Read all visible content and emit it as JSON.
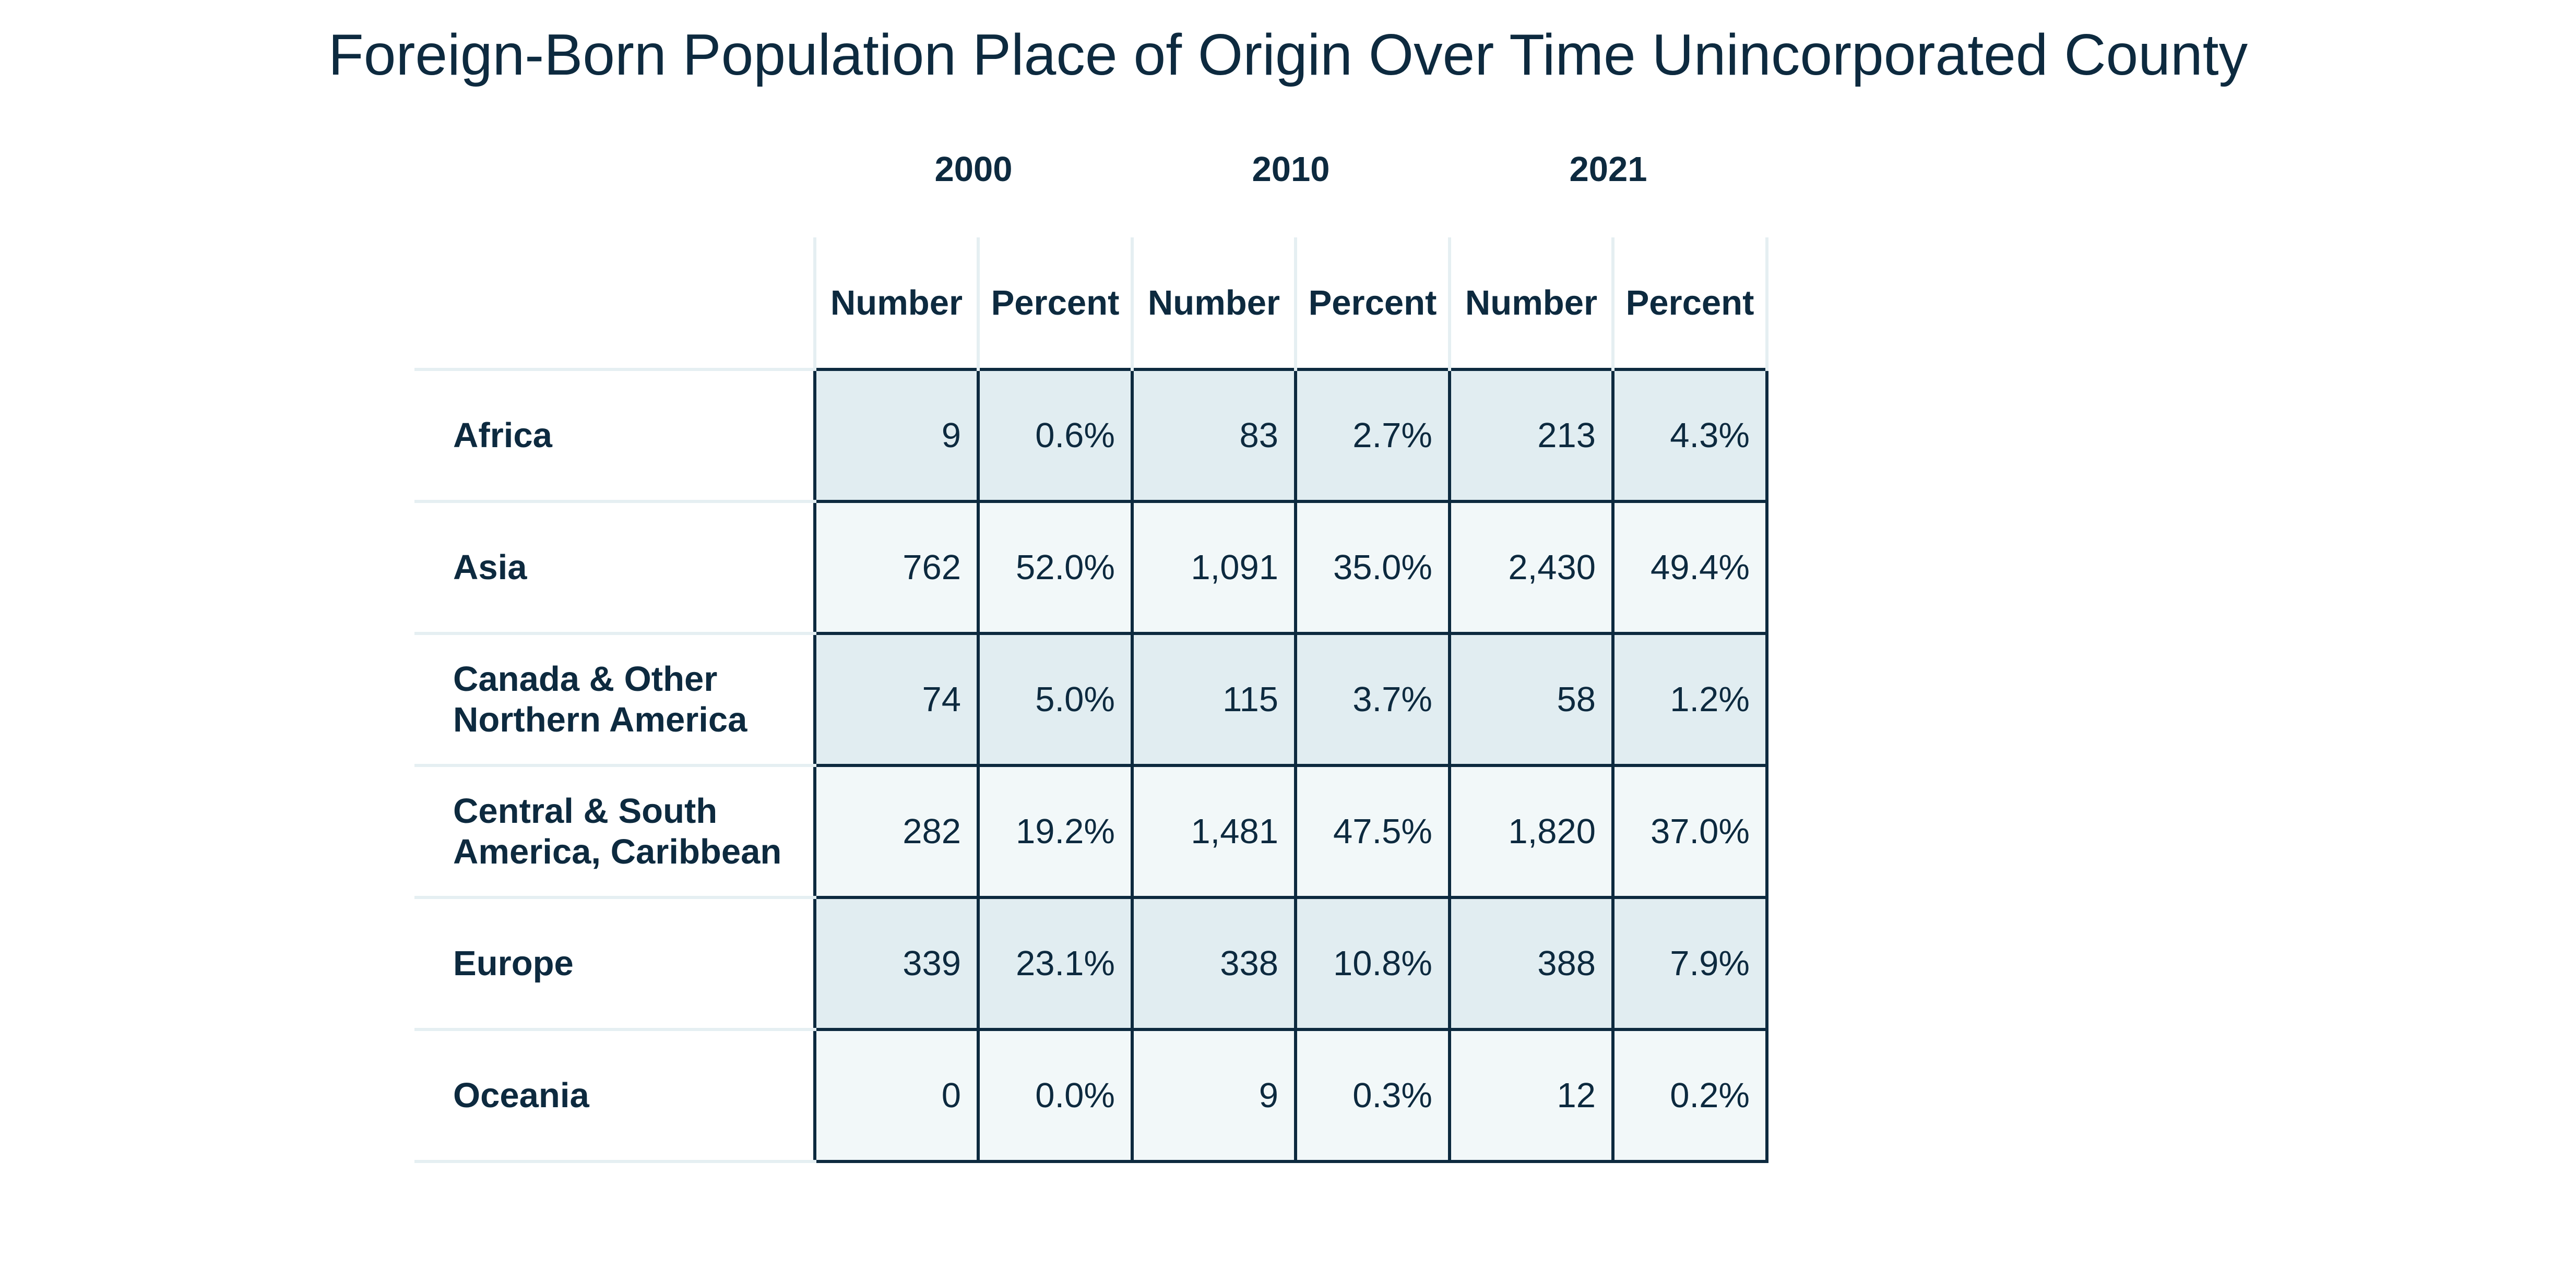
{
  "title": "Foreign-Born Population Place of Origin Over Time Unincorporated County",
  "years": [
    "2000",
    "2010",
    "2021"
  ],
  "column_headers": [
    "Number",
    "Percent",
    "Number",
    "Percent",
    "Number",
    "Percent"
  ],
  "rows": [
    {
      "region": "Africa",
      "values": [
        "9",
        "0.6%",
        "83",
        "2.7%",
        "213",
        "4.3%"
      ]
    },
    {
      "region": "Asia",
      "values": [
        "762",
        "52.0%",
        "1,091",
        "35.0%",
        "2,430",
        "49.4%"
      ]
    },
    {
      "region": "Canada & Other\n Northern America",
      "values": [
        "74",
        "5.0%",
        "115",
        "3.7%",
        "58",
        "1.2%"
      ]
    },
    {
      "region": "Central & South\n America, Caribbean",
      "values": [
        "282",
        "19.2%",
        "1,481",
        "47.5%",
        "1,820",
        "37.0%"
      ]
    },
    {
      "region": "Europe",
      "values": [
        "339",
        "23.1%",
        "338",
        "10.8%",
        "388",
        "7.9%"
      ]
    },
    {
      "region": "Oceania",
      "values": [
        "0",
        "0.0%",
        "9",
        "0.3%",
        "12",
        "0.2%"
      ]
    }
  ]
}
